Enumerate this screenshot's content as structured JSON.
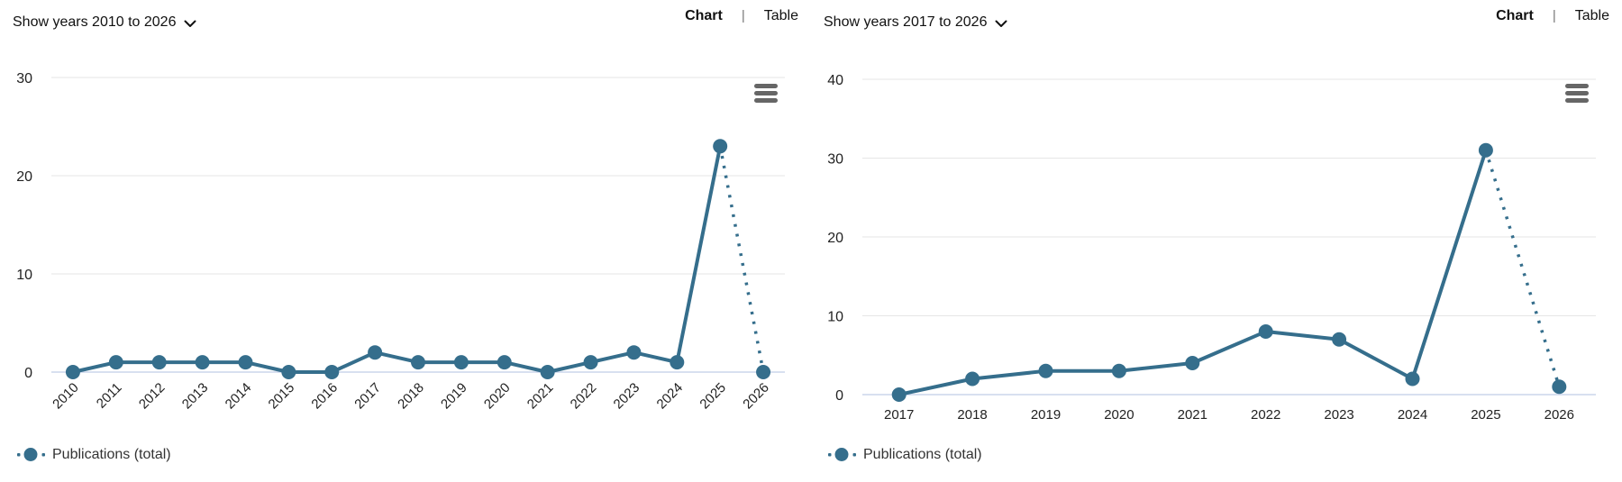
{
  "colors": {
    "series": "#356E8C",
    "grid_line": "#E6E6E6",
    "zero_axis_line": "#CCD6EB",
    "axis_label": "#222222",
    "menu_icon": "#666666",
    "header_text": "#111111"
  },
  "panels": [
    {
      "show_years": {
        "label": "Show years 2010 to 2026"
      },
      "toggle": {
        "chart": "Chart",
        "divider": "|",
        "table": "Table",
        "active": "Chart"
      },
      "legend": {
        "label": "Publications (total)"
      },
      "menu_icon": "hamburger-icon"
    },
    {
      "show_years": {
        "label": "Show years 2017 to 2026"
      },
      "toggle": {
        "chart": "Chart",
        "divider": "|",
        "table": "Table",
        "active": "Chart"
      },
      "legend": {
        "label": "Publications (total)"
      },
      "menu_icon": "hamburger-icon"
    }
  ],
  "chart_data": [
    {
      "type": "line",
      "title": "",
      "xlabel": "",
      "ylabel": "",
      "categories": [
        "2010",
        "2011",
        "2012",
        "2013",
        "2014",
        "2015",
        "2016",
        "2017",
        "2018",
        "2019",
        "2020",
        "2021",
        "2022",
        "2023",
        "2024",
        "2025",
        "2026"
      ],
      "series": [
        {
          "name": "Publications (total)",
          "values": [
            0,
            1,
            1,
            1,
            1,
            0,
            0,
            2,
            1,
            1,
            1,
            0,
            1,
            2,
            1,
            23,
            0
          ]
        }
      ],
      "ylim": [
        0,
        30
      ],
      "yticks": [
        0,
        10,
        20,
        30
      ],
      "grid": true,
      "x_label_rotation": -45,
      "dotted_from_index": 15,
      "legend_position": "bottom-left"
    },
    {
      "type": "line",
      "title": "",
      "xlabel": "",
      "ylabel": "",
      "categories": [
        "2017",
        "2018",
        "2019",
        "2020",
        "2021",
        "2022",
        "2023",
        "2024",
        "2025",
        "2026"
      ],
      "series": [
        {
          "name": "Publications (total)",
          "values": [
            0,
            2,
            3,
            3,
            4,
            8,
            7,
            2,
            31,
            1
          ]
        }
      ],
      "ylim": [
        0,
        40
      ],
      "yticks": [
        0,
        10,
        20,
        30,
        40
      ],
      "grid": true,
      "x_label_rotation": 0,
      "dotted_from_index": 8,
      "legend_position": "bottom-left"
    }
  ]
}
